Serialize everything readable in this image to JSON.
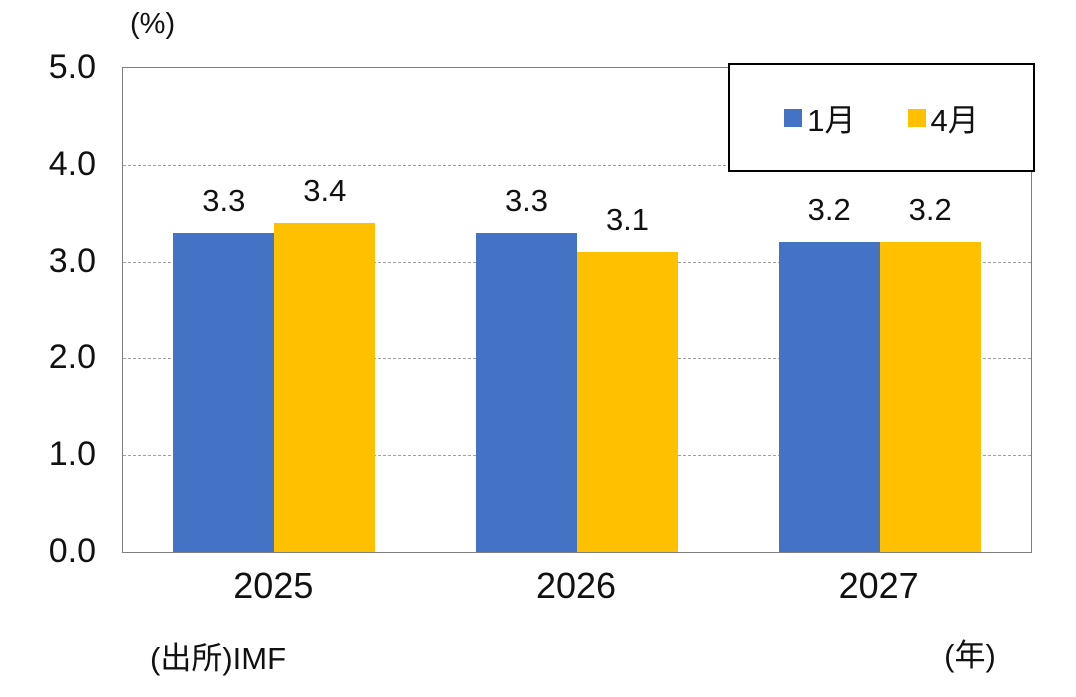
{
  "chart_data": {
    "type": "bar",
    "title": "",
    "unit_label": "(%)",
    "xlabel": "(年)",
    "source": "(出所)IMF",
    "categories": [
      "2025",
      "2026",
      "2027"
    ],
    "series": [
      {
        "name": "1月",
        "id": "jan",
        "color": "#4472C4",
        "values": [
          3.3,
          3.3,
          3.2
        ]
      },
      {
        "name": "4月",
        "id": "apr",
        "color": "#FFC000",
        "values": [
          3.4,
          3.1,
          3.2
        ]
      }
    ],
    "ylim": [
      0.0,
      5.0
    ],
    "ytick_step": 1.0,
    "ytick_labels": [
      "0.0",
      "1.0",
      "2.0",
      "3.0",
      "4.0",
      "5.0"
    ],
    "grid": "horizontal-dashed",
    "gridline_color": "#a0a0a0",
    "legend_position": "top-right",
    "data_labels": true,
    "text_color": "#111111"
  }
}
